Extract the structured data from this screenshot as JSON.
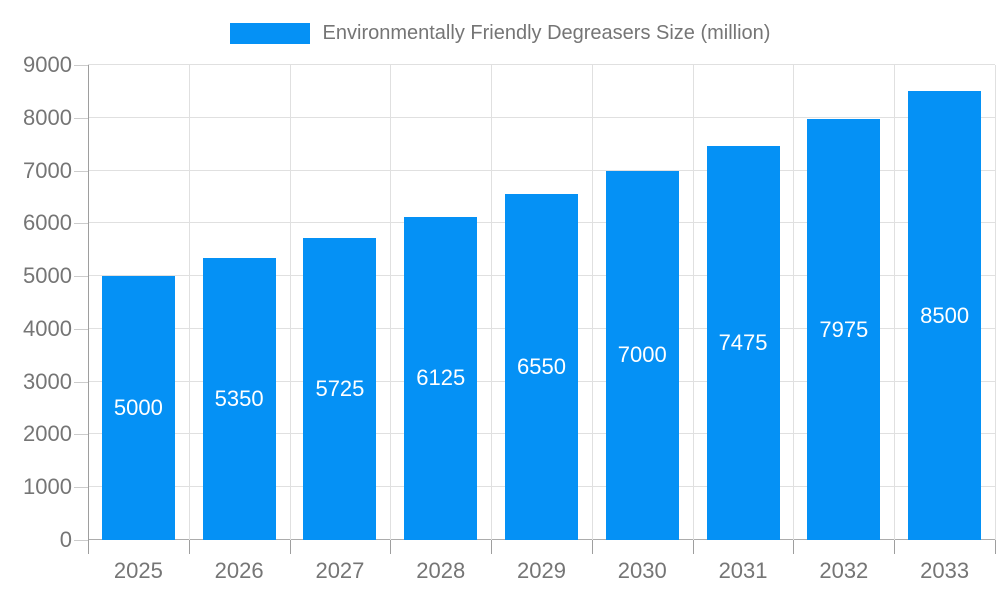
{
  "legend": {
    "label": "Environmentally Friendly Degreasers Size (million)"
  },
  "colors": {
    "bar": "#0591F5",
    "bar_label": "#FFFFFF",
    "tick_text": "#757575",
    "grid": "#E0E0E0",
    "zero_line": "#ACACAC",
    "axis_line": "#9E9E9E",
    "y_tick": "#CCCCCC"
  },
  "chart_data": {
    "type": "bar",
    "title": "Environmentally Friendly Degreasers Size (million)",
    "categories": [
      "2025",
      "2026",
      "2027",
      "2028",
      "2029",
      "2030",
      "2031",
      "2032",
      "2033"
    ],
    "values": [
      5000,
      5350,
      5725,
      6125,
      6550,
      7000,
      7475,
      7975,
      8500
    ],
    "series_name": "Environmentally Friendly Degreasers Size (million)",
    "y_ticks": [
      0,
      1000,
      2000,
      3000,
      4000,
      5000,
      6000,
      7000,
      8000,
      9000
    ],
    "ylim": [
      0,
      9000
    ],
    "xlabel": "",
    "ylabel": "",
    "grid": true,
    "legend_position": "top-center",
    "bar_label_style": "white-centered-inside"
  }
}
